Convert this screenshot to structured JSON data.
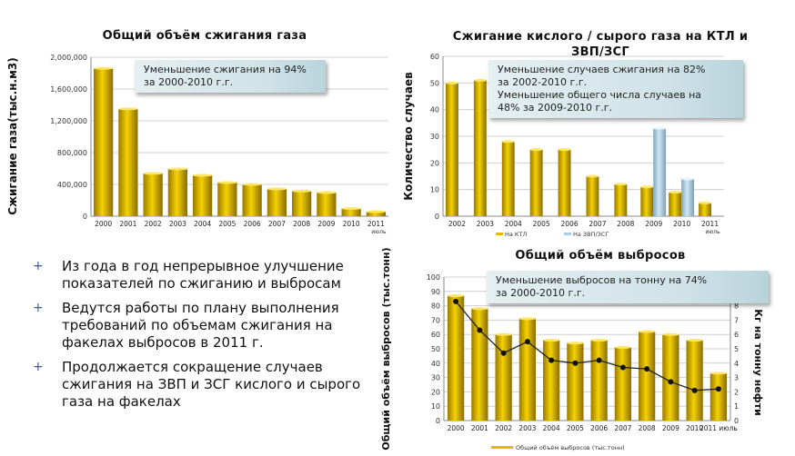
{
  "chart_data": [
    {
      "type": "bar",
      "title": "Общий объём сжигания газа",
      "ylabel": "Сжигание газа(тыс.н.м3)",
      "categories": [
        "2000",
        "2001",
        "2002",
        "2003",
        "2004",
        "2005",
        "2006",
        "2007",
        "2008",
        "2009",
        "2010",
        "2011"
      ],
      "category_sublabels": {
        "11": "июль"
      },
      "values": [
        1860000,
        1350000,
        538000,
        595000,
        515000,
        424000,
        400000,
        343000,
        317000,
        298000,
        96000,
        57000
      ],
      "ylim": [
        0,
        2000000
      ],
      "yticks": [
        "0",
        "400,000",
        "800,000",
        "1,200,000",
        "1,600,000",
        "2,000,000"
      ],
      "annotation": [
        "Уменьшение сжигания на 94%",
        "за 2000-2010  г.г."
      ],
      "color": "#e8b800"
    },
    {
      "type": "bar",
      "title": "Сжигание кислого / сырого газа на КТЛ и",
      "title2": "ЗВП/ЗСГ",
      "ylabel": "Количество случаев",
      "categories": [
        "2002",
        "2003",
        "2004",
        "2005",
        "2006",
        "2007",
        "2008",
        "2009",
        "2010",
        "2011"
      ],
      "category_sublabels": {
        "9": "июль"
      },
      "series": [
        {
          "name": "На КТЛ",
          "values": [
            50,
            51,
            28,
            25,
            25,
            15,
            12,
            11,
            9,
            5
          ],
          "color": "#e8b800"
        },
        {
          "name": "На ЗВП/ЗСГ",
          "values": [
            0,
            0,
            0,
            0,
            0,
            0,
            0,
            33,
            14,
            0
          ],
          "color": "#a9d1e6"
        }
      ],
      "ylim": [
        0,
        60
      ],
      "yticks": [
        "0",
        "10",
        "20",
        "30",
        "40",
        "50",
        "60"
      ],
      "annotation": [
        "Уменьшение случаев сжигания на 82%",
        "за 2002-2010  г.г.",
        "Уменьшение общего числа случаев на",
        "48% за 2009-2010  г.г."
      ],
      "legend": "bottom"
    },
    {
      "type": "bar+line",
      "title": "Общий объём выбросов",
      "ylabel": "Общий объём выбросов (тыс.тонн)",
      "y2label": "Кг на тонну нефти",
      "categories": [
        "2000",
        "2001",
        "2002",
        "2003",
        "2004",
        "2005",
        "2006",
        "2007",
        "2008",
        "2009",
        "2010",
        "2011 июль"
      ],
      "bar_series": {
        "name": "Общий объём выбросов (тыс.тонн)",
        "values": [
          87,
          78,
          60,
          71,
          56,
          54,
          56,
          51,
          62,
          60,
          56,
          33
        ],
        "color": "#e8b800"
      },
      "line_series": {
        "name": "Кг на тонну нефти",
        "values": [
          8.3,
          6.3,
          4.7,
          5.5,
          4.2,
          4.0,
          4.2,
          3.7,
          3.6,
          2.7,
          2.1,
          2.2
        ],
        "color": "#222222"
      },
      "ylim": [
        0,
        100
      ],
      "y2lim": [
        0,
        10
      ],
      "yticks": [
        "0",
        "10",
        "20",
        "30",
        "40",
        "50",
        "60",
        "70",
        "80",
        "90",
        "100"
      ],
      "y2ticks": [
        "0",
        "1",
        "2",
        "3",
        "4",
        "5",
        "6",
        "7",
        "8"
      ],
      "annotation": [
        "Уменьшение выбросов на тонну на  74%",
        "за 2000-2010  г.г."
      ],
      "legend": "bottom"
    }
  ],
  "bullets": [
    "Из года в год непрерывное улучшение показателей по сжиганию и  выбросам",
    "Ведутся работы по плану выполнения требований по объемам сжигания на факелах выбросов в 2011 г.",
    "Продолжается сокращение случаев сжигания на ЗВП и ЗСГ кислого и сырого газа на факелах"
  ],
  "bullet_marker": "+"
}
